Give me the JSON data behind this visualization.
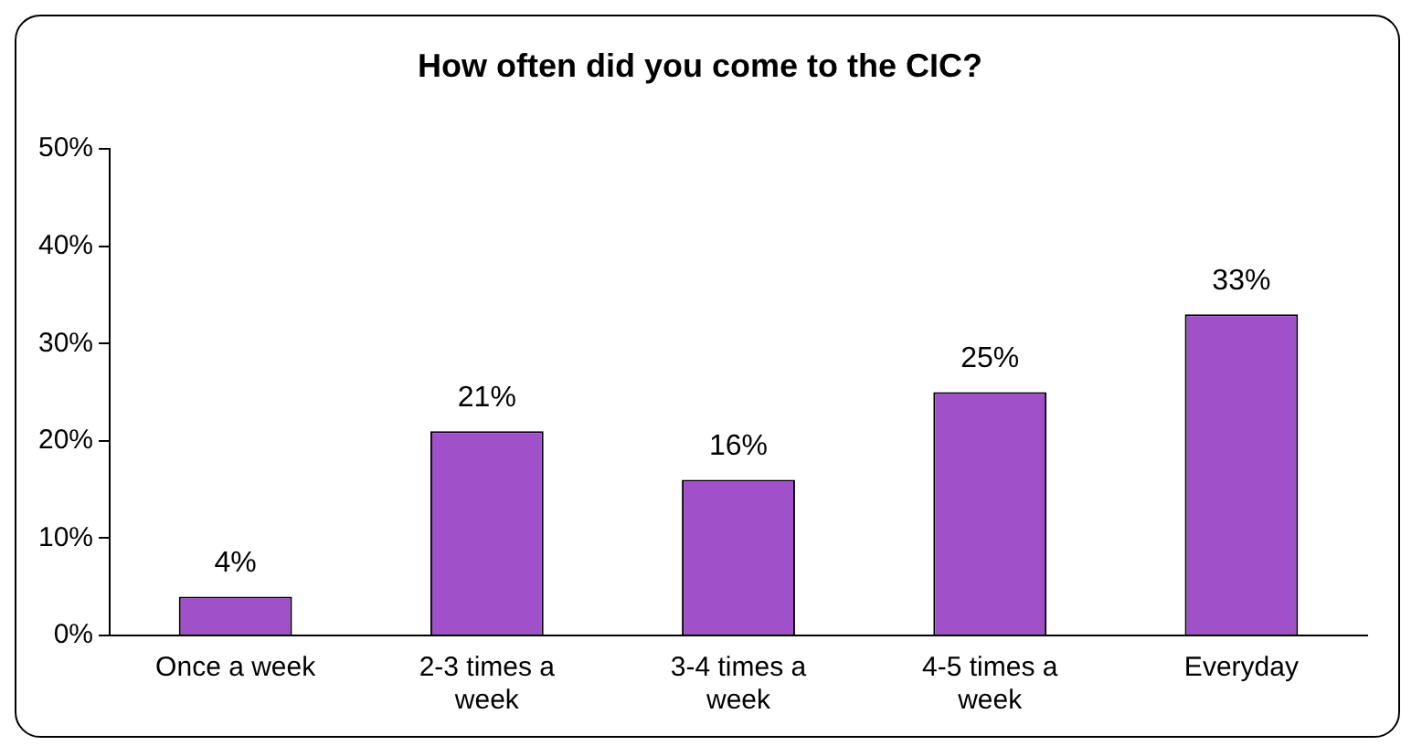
{
  "chart_data": {
    "type": "bar",
    "title": "How often did you come to the CIC?",
    "categories": [
      "Once a week",
      "2-3 times a week",
      "3-4 times a week",
      "4-5 times a week",
      "Everyday"
    ],
    "values": [
      4,
      21,
      16,
      25,
      33
    ],
    "value_labels": [
      "4%",
      "21%",
      "16%",
      "25%",
      "33%"
    ],
    "color": "#a050c8",
    "ylim": [
      0,
      50
    ],
    "yticks": [
      {
        "value": 0,
        "label": "0%"
      },
      {
        "value": 10,
        "label": "10%"
      },
      {
        "value": 20,
        "label": "20%"
      },
      {
        "value": 30,
        "label": "30%"
      },
      {
        "value": 40,
        "label": "40%"
      },
      {
        "value": 50,
        "label": "50%"
      }
    ],
    "grid": false,
    "legend": false
  }
}
